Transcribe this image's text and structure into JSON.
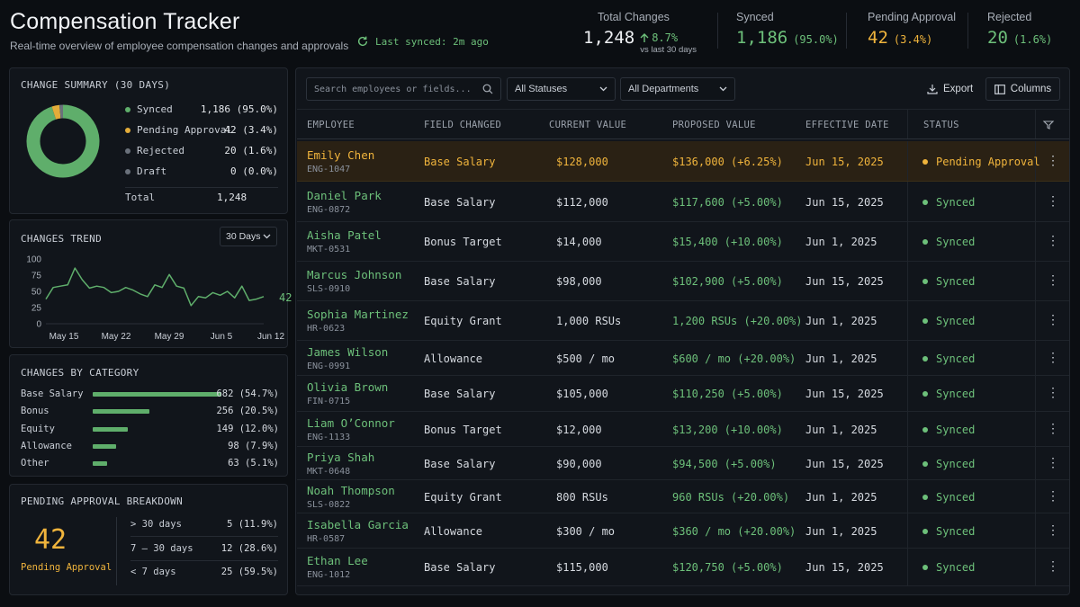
{
  "header": {
    "title": "Compensation Tracker",
    "subtitle": "Real-time overview of employee compensation changes and approvals",
    "sync_status": "Last synced: 2m ago"
  },
  "stats": {
    "total": {
      "label": "Total Changes",
      "value": "1,248",
      "delta": "8.7%",
      "delta_note": "vs last 30 days"
    },
    "synced": {
      "label": "Synced",
      "value": "1,186",
      "pct": "(95.0%)"
    },
    "pending": {
      "label": "Pending Approval",
      "value": "42",
      "pct": "(3.4%)"
    },
    "rejected": {
      "label": "Rejected",
      "value": "20",
      "pct": "(1.6%)"
    }
  },
  "summary": {
    "title": "CHANGE SUMMARY (30 DAYS)",
    "items": [
      {
        "name": "Synced",
        "value": "1,186 (95.0%)",
        "color": "#5fae6b",
        "share": 0.95
      },
      {
        "name": "Pending Approval",
        "value": "42 (3.4%)",
        "color": "#e3ac3a",
        "share": 0.034
      },
      {
        "name": "Rejected",
        "value": "20 (1.6%)",
        "color": "#6a717b",
        "share": 0.016
      },
      {
        "name": "Draft",
        "value": "0 (0.0%)",
        "color": "#6a717b",
        "share": 0.0
      }
    ],
    "total_label": "Total",
    "total_value": "1,248"
  },
  "trend": {
    "title": "CHANGES TREND",
    "range_select": "30 Days",
    "last_value": "42"
  },
  "chart_data": {
    "type": "line",
    "title": "",
    "y_ticks": [
      "100",
      "75",
      "50",
      "25",
      "0"
    ],
    "ylim": [
      0,
      100
    ],
    "x_ticks": [
      "May 15",
      "May 22",
      "May 29",
      "Jun 5",
      "Jun 12"
    ],
    "values": [
      38,
      56,
      58,
      60,
      86,
      68,
      55,
      58,
      56,
      48,
      50,
      56,
      52,
      46,
      42,
      60,
      56,
      76,
      58,
      55,
      28,
      42,
      40,
      48,
      44,
      50,
      40,
      58,
      36,
      38,
      42
    ]
  },
  "categories": {
    "title": "CHANGES BY CATEGORY",
    "items": [
      {
        "name": "Base Salary",
        "value": "682 (54.7%)",
        "fraction": 1.0
      },
      {
        "name": "Bonus",
        "value": "256 (20.5%)",
        "fraction": 0.44
      },
      {
        "name": "Equity",
        "value": "149 (12.0%)",
        "fraction": 0.27
      },
      {
        "name": "Allowance",
        "value": "98 (7.9%)",
        "fraction": 0.18
      },
      {
        "name": "Other",
        "value": "63 (5.1%)",
        "fraction": 0.11
      }
    ]
  },
  "pending_breakdown": {
    "title": "PENDING APPROVAL BREAKDOWN",
    "count": "42",
    "count_label": "Pending Approval",
    "rows": [
      {
        "range": "> 30 days",
        "value": "5 (11.9%)"
      },
      {
        "range": "7 – 30 days",
        "value": "12 (28.6%)"
      },
      {
        "range": "< 7 days",
        "value": "25 (59.5%)"
      }
    ]
  },
  "toolbar": {
    "search_placeholder": "Search employees or fields...",
    "status_select": "All Statuses",
    "department_select": "All Departments",
    "export_label": "Export",
    "columns_label": "Columns"
  },
  "table": {
    "headers": [
      "EMPLOYEE",
      "FIELD CHANGED",
      "CURRENT VALUE",
      "PROPOSED VALUE",
      "EFFECTIVE DATE",
      "STATUS"
    ],
    "rows": [
      {
        "name": "Emily Chen",
        "id": "ENG-1047",
        "field": "Base Salary",
        "current": "$128,000",
        "proposed": "$136,000 (+6.25%)",
        "date": "Jun 15, 2025",
        "status": "Pending Approval",
        "pending": true
      },
      {
        "name": "Daniel Park",
        "id": "ENG-0872",
        "field": "Base Salary",
        "current": "$112,000",
        "proposed": "$117,600 (+5.00%)",
        "date": "Jun 15, 2025",
        "status": "Synced"
      },
      {
        "name": "Aisha Patel",
        "id": "MKT-0531",
        "field": "Bonus Target",
        "current": "$14,000",
        "proposed": "$15,400 (+10.00%)",
        "date": "Jun 1, 2025",
        "status": "Synced"
      },
      {
        "name": "Marcus Johnson",
        "id": "SLS-0910",
        "field": "Base Salary",
        "current": "$98,000",
        "proposed": "$102,900 (+5.00%)",
        "date": "Jun 15, 2025",
        "status": "Synced"
      },
      {
        "name": "Sophia Martinez",
        "id": "HR-0623",
        "field": "Equity Grant",
        "current": "1,000 RSUs",
        "proposed": "1,200 RSUs (+20.00%)",
        "date": "Jun 1, 2025",
        "status": "Synced"
      },
      {
        "name": "James Wilson",
        "id": "ENG-0991",
        "field": "Allowance",
        "current": "$500 / mo",
        "proposed": "$600 / mo (+20.00%)",
        "date": "Jun 1, 2025",
        "status": "Synced"
      },
      {
        "name": "Olivia Brown",
        "id": "FIN-0715",
        "field": "Base Salary",
        "current": "$105,000",
        "proposed": "$110,250 (+5.00%)",
        "date": "Jun 15, 2025",
        "status": "Synced"
      },
      {
        "name": "Liam O’Connor",
        "id": "ENG-1133",
        "field": "Bonus Target",
        "current": "$12,000",
        "proposed": "$13,200 (+10.00%)",
        "date": "Jun 1, 2025",
        "status": "Synced"
      },
      {
        "name": "Priya Shah",
        "id": "MKT-0648",
        "field": "Base Salary",
        "current": "$90,000",
        "proposed": "$94,500 (+5.00%)",
        "date": "Jun 15, 2025",
        "status": "Synced"
      },
      {
        "name": "Noah Thompson",
        "id": "SLS-0822",
        "field": "Equity Grant",
        "current": "800 RSUs",
        "proposed": "960 RSUs (+20.00%)",
        "date": "Jun 1, 2025",
        "status": "Synced"
      },
      {
        "name": "Isabella Garcia",
        "id": "HR-0587",
        "field": "Allowance",
        "current": "$300 / mo",
        "proposed": "$360 / mo (+20.00%)",
        "date": "Jun 1, 2025",
        "status": "Synced"
      },
      {
        "name": "Ethan Lee",
        "id": "ENG-1012",
        "field": "Base Salary",
        "current": "$115,000",
        "proposed": "$120,750 (+5.00%)",
        "date": "Jun 15, 2025",
        "status": "Synced"
      }
    ]
  }
}
